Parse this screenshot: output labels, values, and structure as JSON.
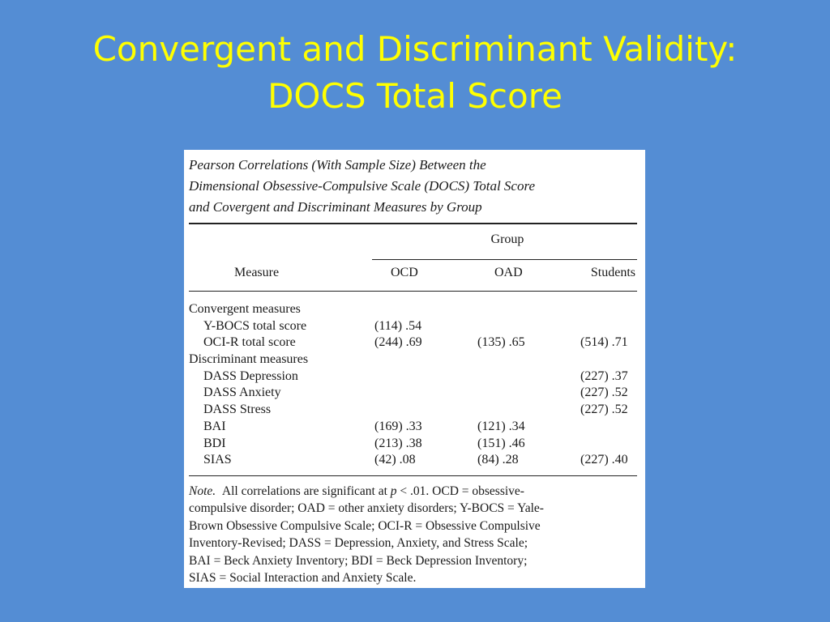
{
  "slide": {
    "title_line1": "Convergent and Discriminant Validity:",
    "title_line2": "DOCS Total Score"
  },
  "table": {
    "caption_lines": [
      "Pearson Correlations (With Sample Size) Between the",
      "Dimensional Obsessive-Compulsive Scale (DOCS) Total Score",
      "and Covergent and Discriminant Measures by Group"
    ],
    "group_label": "Group",
    "columns": {
      "measure": "Measure",
      "ocd": "OCD",
      "oad": "OAD",
      "students": "Students"
    },
    "rows": [
      {
        "measure": "Convergent measures",
        "ocd": "",
        "oad": "",
        "students": ""
      },
      {
        "measure": "Y-BOCS total score",
        "ocd": "(114) .54",
        "oad": "",
        "students": ""
      },
      {
        "measure": "OCI-R total score",
        "ocd": "(244) .69",
        "oad": "(135) .65",
        "students": "(514) .71"
      },
      {
        "measure": "Discriminant measures",
        "ocd": "",
        "oad": "",
        "students": ""
      },
      {
        "measure": "DASS Depression",
        "ocd": "",
        "oad": "",
        "students": "(227) .37"
      },
      {
        "measure": "DASS Anxiety",
        "ocd": "",
        "oad": "",
        "students": "(227) .52"
      },
      {
        "measure": "DASS Stress",
        "ocd": "",
        "oad": "",
        "students": "(227) .52"
      },
      {
        "measure": "BAI",
        "ocd": "(169) .33",
        "oad": "(121) .34",
        "students": ""
      },
      {
        "measure": "BDI",
        "ocd": "(213) .38",
        "oad": "(151) .46",
        "students": ""
      },
      {
        "measure": "SIAS",
        "ocd": "(42) .08",
        "oad": "(84) .28",
        "students": "(227) .40"
      }
    ],
    "note": {
      "label": "Note.",
      "line1_a": "All correlations are significant at",
      "line1_p": "p",
      "line1_b": "< .01. OCD = obsessive-",
      "lines": [
        "compulsive disorder; OAD = other anxiety disorders; Y-BOCS = Yale-",
        "Brown Obsessive Compulsive Scale; OCI-R = Obsessive Compulsive",
        "Inventory-Revised; DASS = Depression, Anxiety, and Stress Scale;",
        "BAI = Beck Anxiety Inventory; BDI = Beck Depression Inventory;",
        "SIAS = Social Interaction and Anxiety Scale."
      ]
    }
  }
}
